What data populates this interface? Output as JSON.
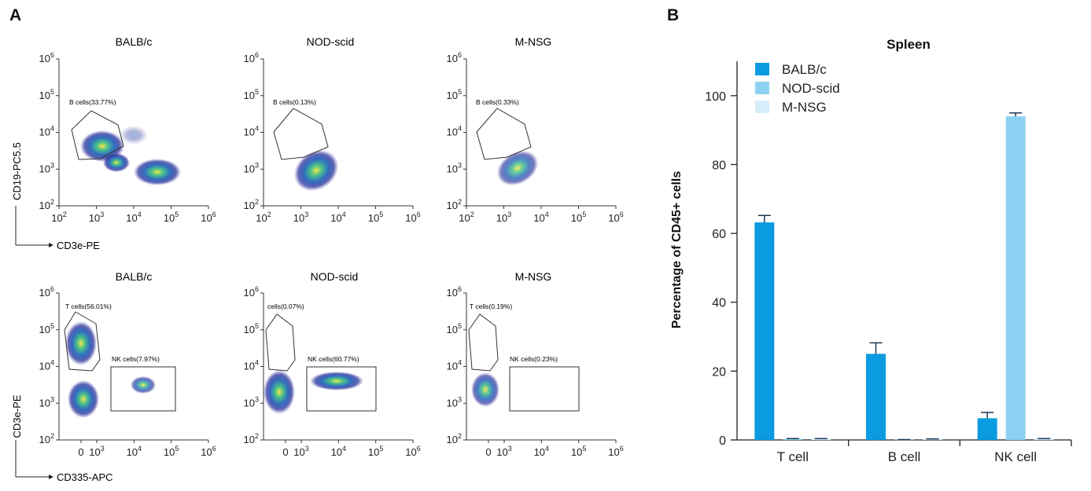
{
  "panel_a": {
    "letter": "A",
    "rows": [
      {
        "y_axis": "CD19-PC5.5",
        "x_axis": "CD3e-PE",
        "x_ticks": [
          "10^2",
          "10^3",
          "10^4",
          "10^5",
          "10^6"
        ],
        "y_ticks": [
          "10^2",
          "10^3",
          "10^4",
          "10^5",
          "10^6"
        ],
        "plots": [
          {
            "title": "BALB/c",
            "gates": [
              {
                "label": "B cells(33.77%)"
              }
            ]
          },
          {
            "title": "NOD-scid",
            "gates": [
              {
                "label": "B cells(0.13%)"
              }
            ]
          },
          {
            "title": "M-NSG",
            "gates": [
              {
                "label": "B cells(0.33%)"
              }
            ]
          }
        ]
      },
      {
        "y_axis": "CD3e-PE",
        "x_axis": "CD335-APC",
        "x_ticks": [
          "0",
          "10^3",
          "10^4",
          "10^5",
          "10^6"
        ],
        "y_ticks": [
          "10^2",
          "10^3",
          "10^4",
          "10^5",
          "10^6"
        ],
        "plots": [
          {
            "title": "BALB/c",
            "gates": [
              {
                "label": "T cells(56.01%)"
              },
              {
                "label": "NK cells(7.97%)"
              }
            ]
          },
          {
            "title": "NOD-scid",
            "gates": [
              {
                "label": "cells(0.07%)"
              },
              {
                "label": "NK cells(60.77%)"
              }
            ]
          },
          {
            "title": "M-NSG",
            "gates": [
              {
                "label": "T cells(0.19%)"
              },
              {
                "label": "NK cells(0.23%)"
              }
            ]
          }
        ]
      }
    ]
  },
  "chart_data": {
    "panel_letter": "B",
    "type": "bar",
    "title": "Spleen",
    "ylabel": "Percentage of CD45+ cells",
    "xlabel": "",
    "ylim": [
      0,
      110
    ],
    "yticks": [
      0,
      20,
      40,
      60,
      80,
      100
    ],
    "categories": [
      "T cell",
      "B cell",
      "NK cell"
    ],
    "series": [
      {
        "name": "BALB/c",
        "color": "#0a9be0",
        "values": [
          63.2,
          25.0,
          6.3
        ],
        "errors": [
          2.0,
          3.2,
          1.7
        ]
      },
      {
        "name": "NOD-scid",
        "color": "#8dd1f2",
        "values": [
          0.3,
          0.1,
          94.0
        ],
        "errors": [
          0.1,
          0.0,
          1.0
        ]
      },
      {
        "name": "M-NSG",
        "color": "#d6eefa",
        "values": [
          0.3,
          0.2,
          0.3
        ],
        "errors": [
          0.1,
          0.1,
          0.1
        ]
      }
    ],
    "legend_position": "top-left"
  }
}
